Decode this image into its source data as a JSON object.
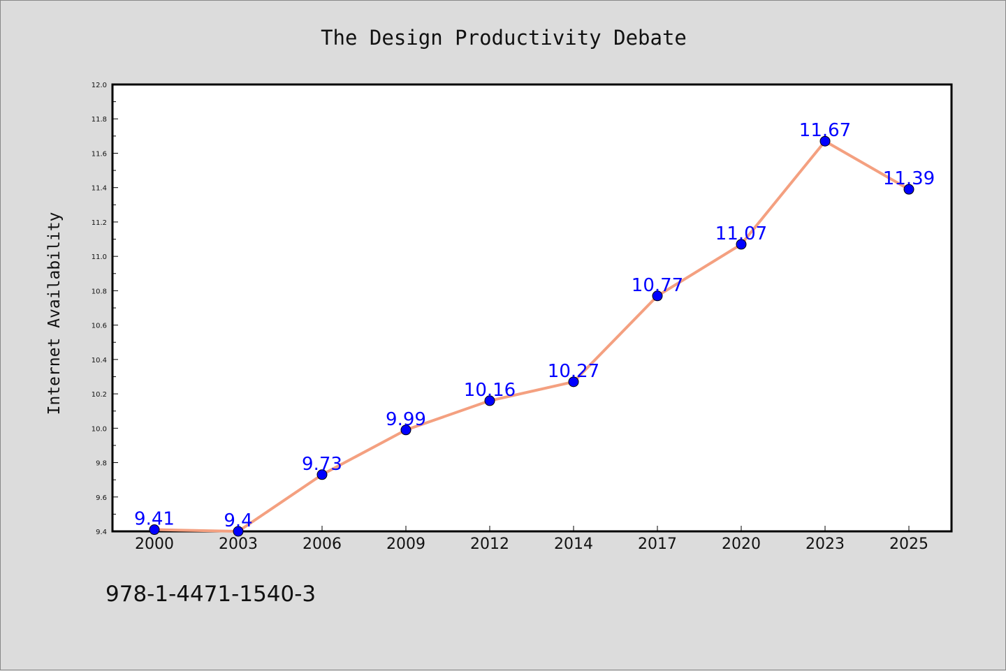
{
  "chart_data": {
    "type": "line",
    "title": "The Design Productivity Debate",
    "xlabel": "",
    "ylabel": "Internet Availability",
    "categories": [
      "2000",
      "2003",
      "2006",
      "2009",
      "2012",
      "2014",
      "2017",
      "2020",
      "2023",
      "2025"
    ],
    "series": [
      {
        "values": [
          9.41,
          9.4,
          9.73,
          9.99,
          10.16,
          10.27,
          10.77,
          11.07,
          11.67,
          11.39
        ],
        "line_color": "#f4a080",
        "marker_color": "#0000ff"
      }
    ],
    "data_labels": [
      "9.41",
      "9.4",
      "9.73",
      "9.99",
      "10.16",
      "10.27",
      "10.77",
      "11.07",
      "11.67",
      "11.39"
    ],
    "ylim": [
      9.4,
      12.0
    ],
    "yticks": [
      "9.4",
      "9.6",
      "9.8",
      "10.0",
      "10.2",
      "10.4",
      "10.6",
      "10.8",
      "11.0",
      "11.2",
      "11.4",
      "11.6",
      "11.8",
      "12.0"
    ],
    "grid": false,
    "legend": "none"
  },
  "footer": {
    "isbn": "978-1-4471-1540-3"
  }
}
